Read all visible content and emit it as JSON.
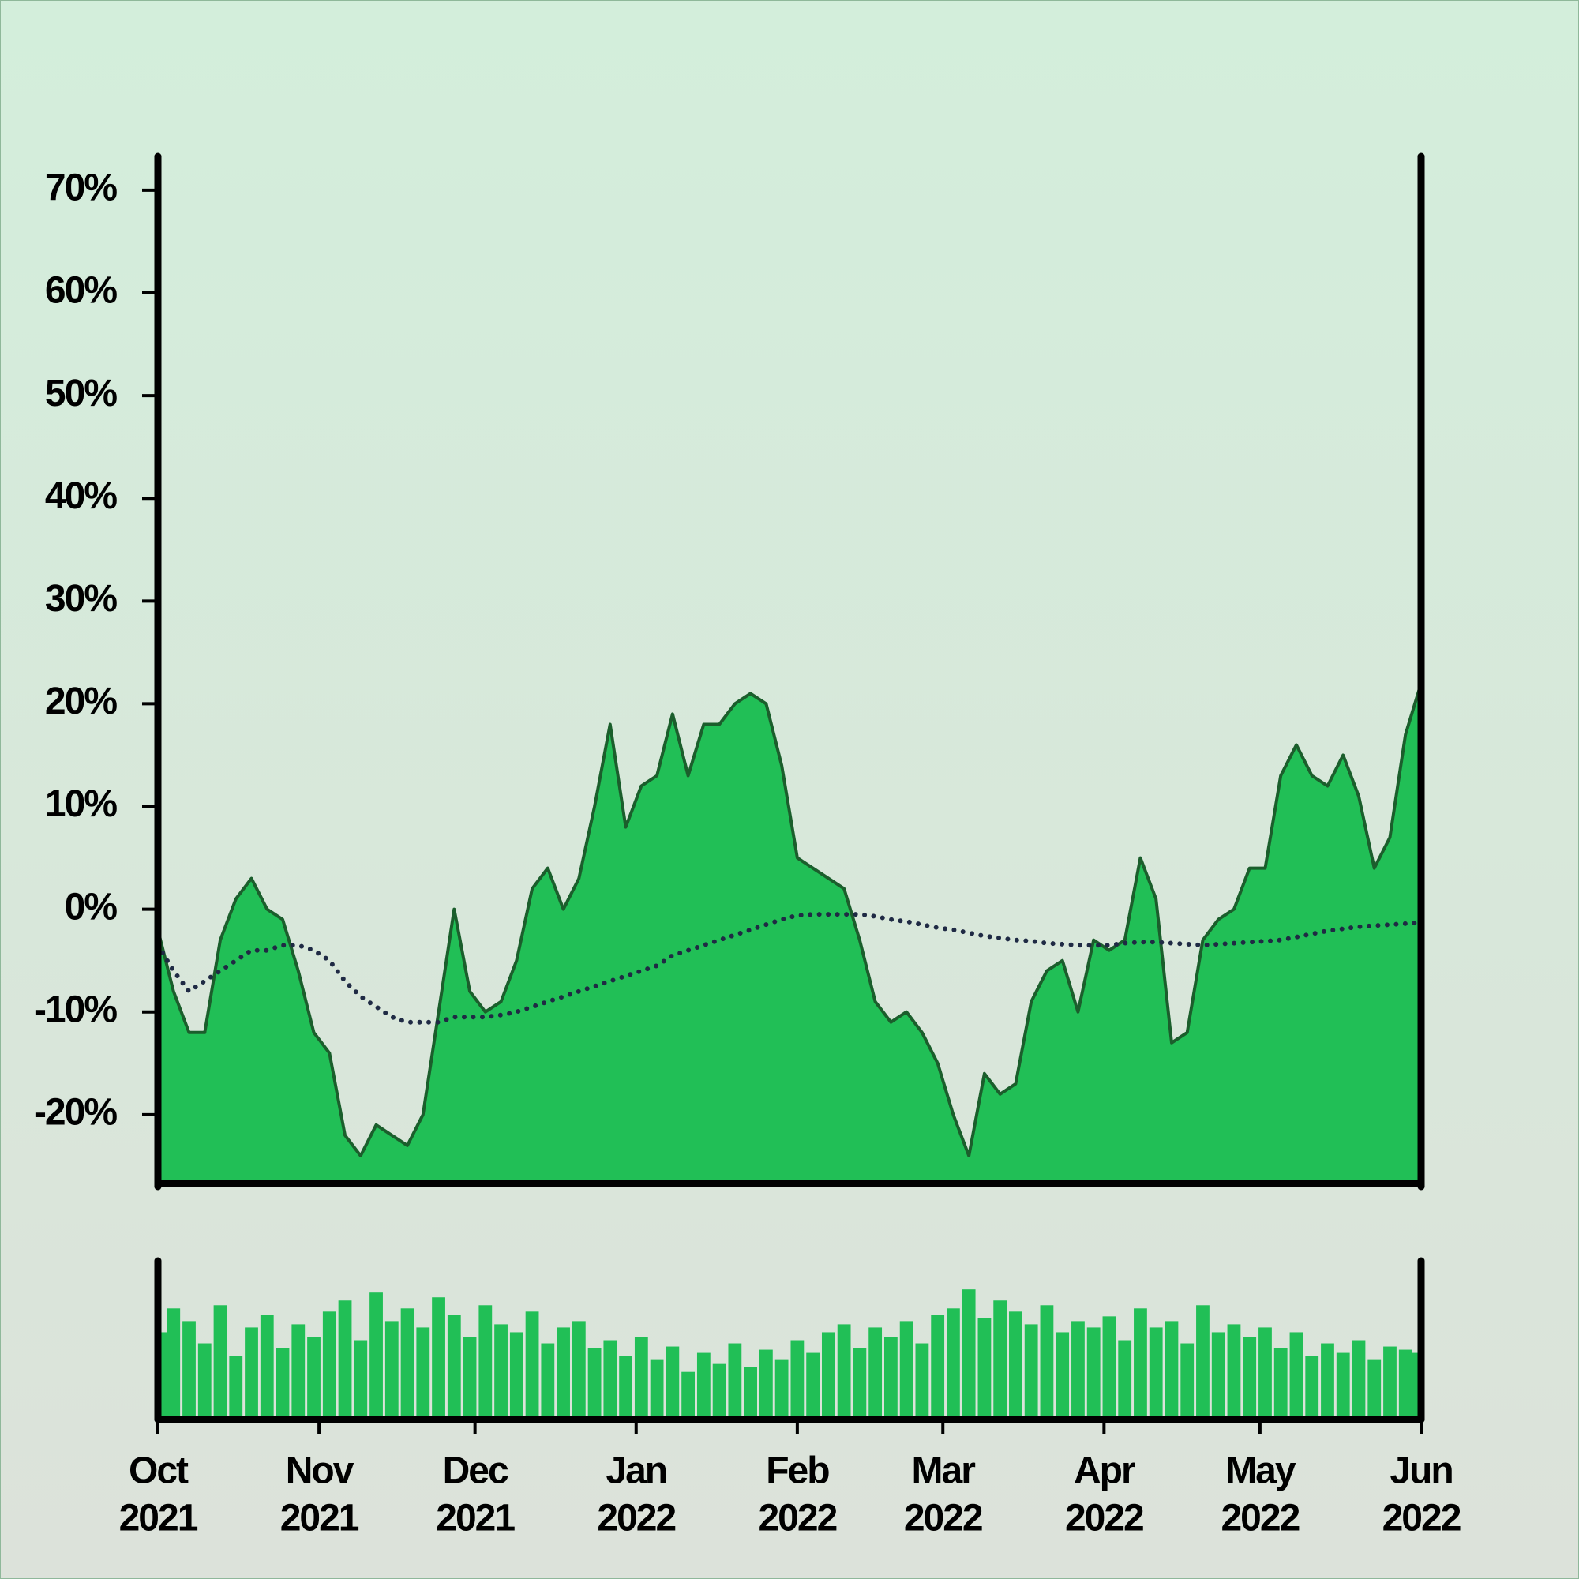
{
  "chart_data": [
    {
      "type": "area",
      "x": [
        0,
        3,
        6,
        9,
        12,
        15,
        18,
        21,
        24,
        27,
        30,
        33,
        36,
        39,
        42,
        45,
        48,
        51,
        54,
        57,
        60,
        63,
        66,
        69,
        72,
        75,
        78,
        81,
        84,
        87,
        90,
        93,
        96,
        99,
        102,
        105,
        108,
        111,
        114,
        117,
        120,
        123,
        126,
        129,
        132,
        135,
        138,
        141,
        144,
        147,
        150,
        153,
        156,
        159,
        162,
        165,
        168,
        171,
        174,
        177,
        180,
        183,
        186,
        189,
        192,
        195,
        198,
        201,
        204,
        207,
        210,
        213,
        216,
        219,
        222,
        225,
        228,
        231,
        234,
        237,
        240,
        243
      ],
      "series": [
        {
          "style": "area",
          "color": "#21bf56",
          "line_color": "#1b5e2c",
          "values": [
            -2,
            -8,
            -12,
            -12,
            -3,
            1,
            3,
            0,
            -1,
            -6,
            -12,
            -14,
            -22,
            -24,
            -21,
            -22,
            -23,
            -20,
            -10,
            0,
            -8,
            -10,
            -9,
            -5,
            2,
            4,
            0,
            3,
            10,
            18,
            8,
            12,
            13,
            19,
            13,
            18,
            18,
            20,
            21,
            20,
            14,
            5,
            4,
            3,
            2,
            -3,
            -9,
            -11,
            -10,
            -12,
            -15,
            -20,
            -24,
            -16,
            -18,
            -17,
            -9,
            -6,
            -5,
            -10,
            -3,
            -4,
            -3,
            5,
            1,
            -13,
            -12,
            -3,
            -1,
            0,
            4,
            4,
            13,
            16,
            13,
            12,
            15,
            11,
            4,
            7,
            17,
            22
          ]
        },
        {
          "style": "dotted",
          "color": "#1f2a44",
          "values": [
            -3.5,
            -6,
            -8,
            -7,
            -6,
            -5,
            -4,
            -4,
            -3.5,
            -3.5,
            -4,
            -5,
            -7,
            -8.5,
            -9.5,
            -10.5,
            -11,
            -11,
            -11,
            -10.5,
            -10.5,
            -10.5,
            -10.3,
            -10,
            -9.5,
            -9,
            -8.5,
            -8,
            -7.5,
            -7,
            -6.5,
            -6,
            -5.5,
            -4.5,
            -4,
            -3.5,
            -3,
            -2.5,
            -2,
            -1.5,
            -1,
            -0.6,
            -0.5,
            -0.5,
            -0.5,
            -0.5,
            -0.7,
            -1,
            -1.2,
            -1.5,
            -1.8,
            -2,
            -2.3,
            -2.6,
            -2.8,
            -3,
            -3.1,
            -3.3,
            -3.4,
            -3.5,
            -3.5,
            -3.5,
            -3.3,
            -3.2,
            -3.2,
            -3.3,
            -3.4,
            -3.5,
            -3.4,
            -3.3,
            -3.2,
            -3.1,
            -3,
            -2.7,
            -2.4,
            -2.1,
            -1.9,
            -1.7,
            -1.6,
            -1.5,
            -1.4,
            -1.3
          ]
        }
      ],
      "xlim": [
        0,
        243
      ],
      "ylim": [
        -26.7,
        73.3
      ],
      "yticks": [
        {
          "value": -20,
          "label": "-20%"
        },
        {
          "value": -10,
          "label": "-10%"
        },
        {
          "value": 0,
          "label": "0%"
        },
        {
          "value": 10,
          "label": "10%"
        },
        {
          "value": 20,
          "label": "20%"
        },
        {
          "value": 30,
          "label": "30%"
        },
        {
          "value": 40,
          "label": "40%"
        },
        {
          "value": 50,
          "label": "50%"
        },
        {
          "value": 60,
          "label": "60%"
        },
        {
          "value": 70,
          "label": "70%"
        }
      ]
    },
    {
      "type": "bar",
      "x": [
        0,
        3,
        6,
        9,
        12,
        15,
        18,
        21,
        24,
        27,
        30,
        33,
        36,
        39,
        42,
        45,
        48,
        51,
        54,
        57,
        60,
        63,
        66,
        69,
        72,
        75,
        78,
        81,
        84,
        87,
        90,
        93,
        96,
        99,
        102,
        105,
        108,
        111,
        114,
        117,
        120,
        123,
        126,
        129,
        132,
        135,
        138,
        141,
        144,
        147,
        150,
        153,
        156,
        159,
        162,
        165,
        168,
        171,
        174,
        177,
        180,
        183,
        186,
        189,
        192,
        195,
        198,
        201,
        204,
        207,
        210,
        213,
        216,
        219,
        222,
        225,
        228,
        231,
        234,
        237,
        240,
        243
      ],
      "values": [
        55,
        70,
        62,
        48,
        72,
        40,
        58,
        66,
        45,
        60,
        52,
        68,
        75,
        50,
        80,
        62,
        70,
        58,
        77,
        66,
        52,
        72,
        60,
        55,
        68,
        48,
        58,
        62,
        45,
        50,
        40,
        52,
        38,
        46,
        30,
        42,
        35,
        48,
        33,
        44,
        38,
        50,
        42,
        55,
        60,
        45,
        58,
        52,
        62,
        48,
        66,
        70,
        82,
        64,
        75,
        68,
        60,
        72,
        55,
        62,
        58,
        65,
        50,
        70,
        58,
        62,
        48,
        72,
        55,
        60,
        52,
        58,
        45,
        55,
        40,
        48,
        42,
        50,
        38,
        46,
        44,
        42
      ],
      "color": "#21bf56",
      "xlim": [
        0,
        243
      ],
      "ylim": [
        0,
        100
      ],
      "xticks": [
        {
          "value": 0,
          "label": [
            "Oct",
            "2021"
          ]
        },
        {
          "value": 31,
          "label": [
            "Nov",
            "2021"
          ]
        },
        {
          "value": 61,
          "label": [
            "Dec",
            "2021"
          ]
        },
        {
          "value": 92,
          "label": [
            "Jan",
            "2022"
          ]
        },
        {
          "value": 123,
          "label": [
            "Feb",
            "2022"
          ]
        },
        {
          "value": 151,
          "label": [
            "Mar",
            "2022"
          ]
        },
        {
          "value": 182,
          "label": [
            "Apr",
            "2022"
          ]
        },
        {
          "value": 212,
          "label": [
            "May",
            "2022"
          ]
        },
        {
          "value": 243,
          "label": [
            "Jun",
            "2022"
          ]
        }
      ]
    }
  ]
}
